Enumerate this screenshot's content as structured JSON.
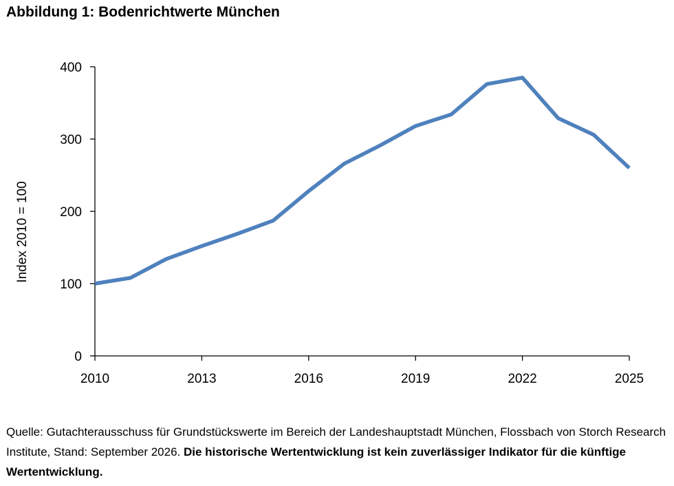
{
  "figure_title": "Abbildung 1: Bodenrichtwerte München",
  "chart_data": {
    "type": "line",
    "title": "",
    "xlabel": "",
    "ylabel": "Index 2010 = 100",
    "xlim": [
      2010,
      2025
    ],
    "ylim": [
      0,
      400
    ],
    "x_ticks": [
      2010,
      2013,
      2016,
      2019,
      2022,
      2025
    ],
    "y_ticks": [
      0,
      100,
      200,
      300,
      400
    ],
    "grid": false,
    "legend": "none",
    "series": [
      {
        "color": "#4F81BD",
        "x": [
          2010,
          2011,
          2012,
          2013,
          2014,
          2015,
          2016,
          2017,
          2018,
          2019,
          2020,
          2021,
          2022,
          2023,
          2024,
          2025
        ],
        "y": [
          100,
          108,
          134,
          152,
          169,
          187,
          228,
          266,
          291,
          318,
          334,
          376,
          385,
          329,
          306,
          260
        ]
      }
    ]
  },
  "source_note": {
    "normal": "Quelle: Gutachterausschuss für Grundstückswerte im Bereich der Landeshauptstadt München, Flossbach von Storch Research Institute, Stand: September 2026. ",
    "bold": "Die historische Wertentwicklung ist kein zuverlässiger Indikator für die künftige Wertentwicklung."
  }
}
